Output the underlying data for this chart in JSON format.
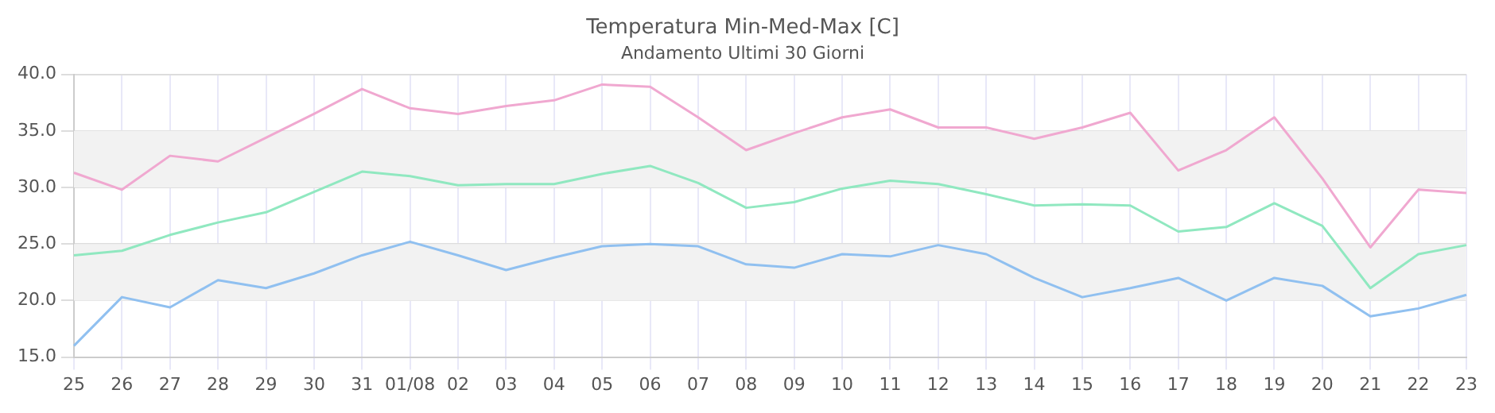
{
  "chart_data": {
    "type": "line",
    "title": "Temperatura Min-Med-Max [C]",
    "subtitle": "Andamento Ultimi 30 Giorni",
    "categories": [
      "25",
      "26",
      "27",
      "28",
      "29",
      "30",
      "31",
      "01/08",
      "02",
      "03",
      "04",
      "05",
      "06",
      "07",
      "08",
      "09",
      "10",
      "11",
      "12",
      "13",
      "14",
      "15",
      "16",
      "17",
      "18",
      "19",
      "20",
      "21",
      "22",
      "23"
    ],
    "series": [
      {
        "color": "#f0a8d0",
        "values": [
          31.3,
          29.8,
          32.8,
          32.3,
          34.4,
          36.5,
          38.7,
          37.0,
          36.5,
          37.2,
          37.7,
          39.1,
          38.9,
          36.2,
          33.3,
          34.8,
          36.2,
          36.9,
          35.3,
          35.3,
          34.3,
          35.3,
          36.6,
          31.5,
          33.3,
          36.2,
          30.8,
          24.7,
          29.8,
          29.5
        ]
      },
      {
        "color": "#90e8c0",
        "values": [
          24.0,
          24.4,
          25.8,
          26.9,
          27.8,
          29.6,
          31.4,
          31.0,
          30.2,
          30.3,
          30.3,
          31.2,
          31.9,
          30.4,
          28.2,
          28.7,
          29.9,
          30.6,
          30.3,
          29.4,
          28.4,
          28.5,
          28.4,
          26.1,
          26.5,
          28.6,
          26.6,
          21.1,
          24.1,
          24.9
        ]
      },
      {
        "color": "#90c0f0",
        "values": [
          16.0,
          20.3,
          19.4,
          21.8,
          21.1,
          22.4,
          24.0,
          25.2,
          24.0,
          22.7,
          23.8,
          24.8,
          25.0,
          24.8,
          23.2,
          22.9,
          24.1,
          23.9,
          24.9,
          24.1,
          22.0,
          20.3,
          21.1,
          22.0,
          20.0,
          22.0,
          21.3,
          18.6,
          19.3,
          20.5
        ]
      }
    ],
    "ylim": [
      15,
      40
    ],
    "yticks": [
      {
        "value": 15,
        "label": "15.0"
      },
      {
        "value": 20,
        "label": "20.0"
      },
      {
        "value": 25,
        "label": "25.0"
      },
      {
        "value": 30,
        "label": "30.0"
      },
      {
        "value": 35,
        "label": "35.0"
      },
      {
        "value": 40,
        "label": "40.0"
      }
    ],
    "bands": [
      {
        "axis": "y",
        "from": 20,
        "to": 25,
        "color": "#f2f2f2"
      },
      {
        "axis": "y",
        "from": 30,
        "to": 35,
        "color": "#f2f2f2"
      }
    ],
    "grid": true,
    "legend": false,
    "marker": "none",
    "line_style": "solid"
  }
}
